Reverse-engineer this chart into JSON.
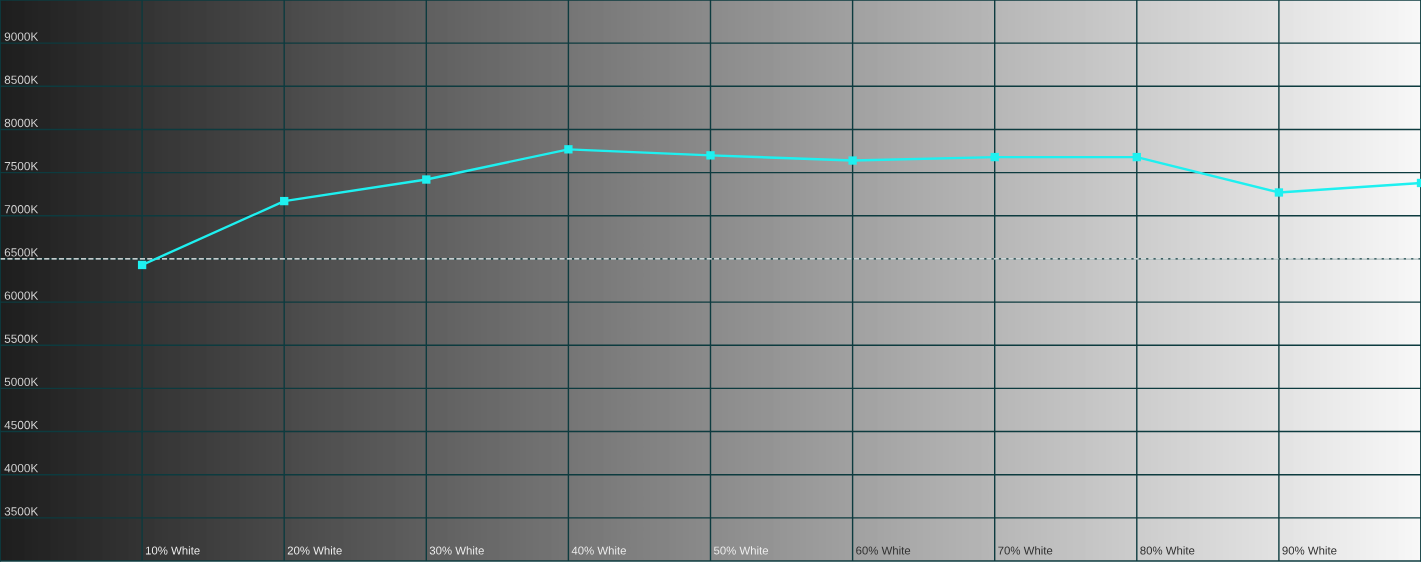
{
  "chart_data": {
    "type": "line",
    "categories": [
      null,
      "10% White",
      "20% White",
      "30% White",
      "40% White",
      "50% White",
      "60% White",
      "70% White",
      "80% White",
      "90% White",
      null
    ],
    "series": [
      {
        "color": "#1ef0f0",
        "values": [
          null,
          6430,
          7170,
          7420,
          7770,
          7700,
          7640,
          7680,
          7680,
          7270,
          7380
        ]
      }
    ],
    "ylim": [
      3000,
      9500
    ],
    "yticks": [
      {
        "value": 3500,
        "label": "3500K"
      },
      {
        "value": 4000,
        "label": "4000K"
      },
      {
        "value": 4500,
        "label": "4500K"
      },
      {
        "value": 5000,
        "label": "5000K"
      },
      {
        "value": 5500,
        "label": "5500K"
      },
      {
        "value": 6000,
        "label": "6000K"
      },
      {
        "value": 6500,
        "label": "6500K"
      },
      {
        "value": 7000,
        "label": "7000K"
      },
      {
        "value": 7500,
        "label": "7500K"
      },
      {
        "value": 8000,
        "label": "8000K"
      },
      {
        "value": 8500,
        "label": "8500K"
      },
      {
        "value": 9000,
        "label": "9000K"
      }
    ],
    "grid": true,
    "marker": "square",
    "line_style": "solid",
    "ref_lines": [
      {
        "axis": "y",
        "value": 6500,
        "color": "#ffffff",
        "line_style": "dashed"
      }
    ]
  }
}
